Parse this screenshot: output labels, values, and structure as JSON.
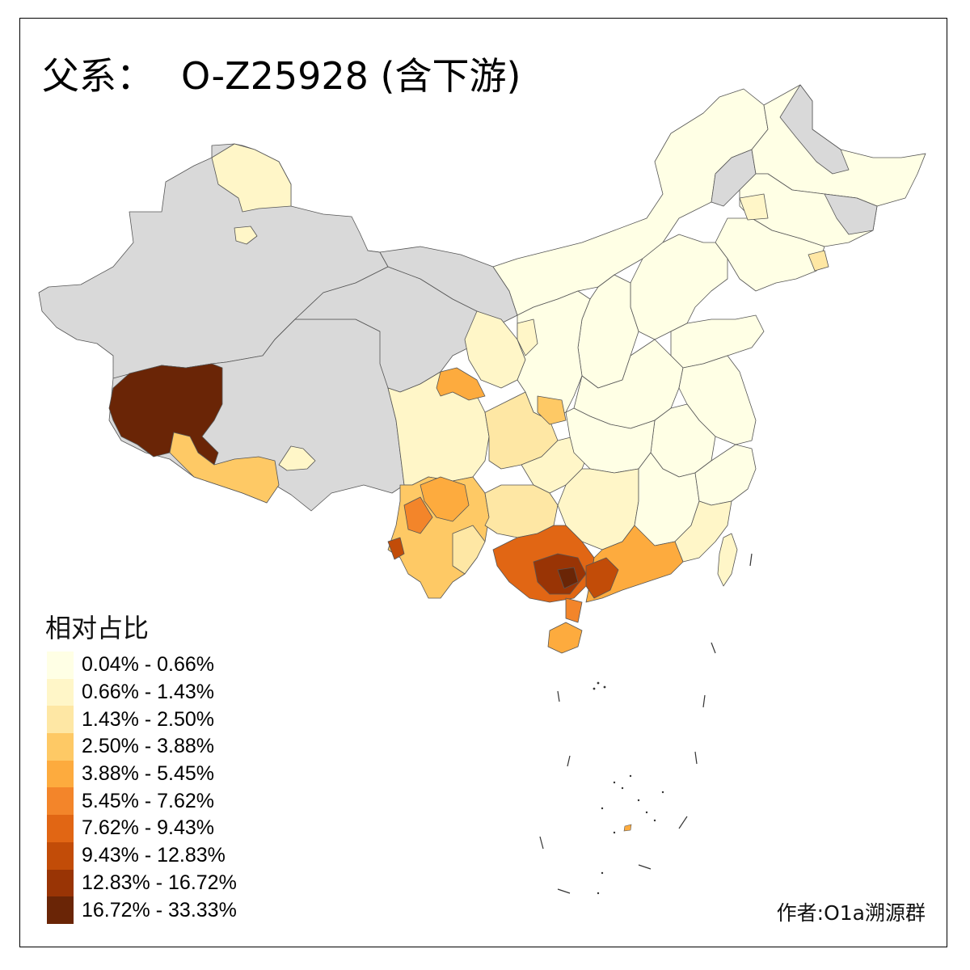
{
  "title": {
    "prefix": "父系：",
    "main": "O-Z25928 (含下游)"
  },
  "legend": {
    "title": "相对占比",
    "items": [
      {
        "label": "0.04% - 0.66%",
        "color": "#ffffe5"
      },
      {
        "label": "0.66% - 1.43%",
        "color": "#fff6c8"
      },
      {
        "label": "1.43% - 2.50%",
        "color": "#fee7a4"
      },
      {
        "label": "2.50% - 3.88%",
        "color": "#fec965"
      },
      {
        "label": "3.88% - 5.45%",
        "color": "#fdab3e"
      },
      {
        "label": "5.45% - 7.62%",
        "color": "#f3852a"
      },
      {
        "label": "7.62% - 9.43%",
        "color": "#e16614"
      },
      {
        "label": "9.43% - 12.83%",
        "color": "#c24c08"
      },
      {
        "label": "12.83% - 16.72%",
        "color": "#993405"
      },
      {
        "label": "16.72% - 33.33%",
        "color": "#6a2506"
      }
    ]
  },
  "no_data_color": "#d9d9d9",
  "credit": "作者:O1a溯源群"
}
